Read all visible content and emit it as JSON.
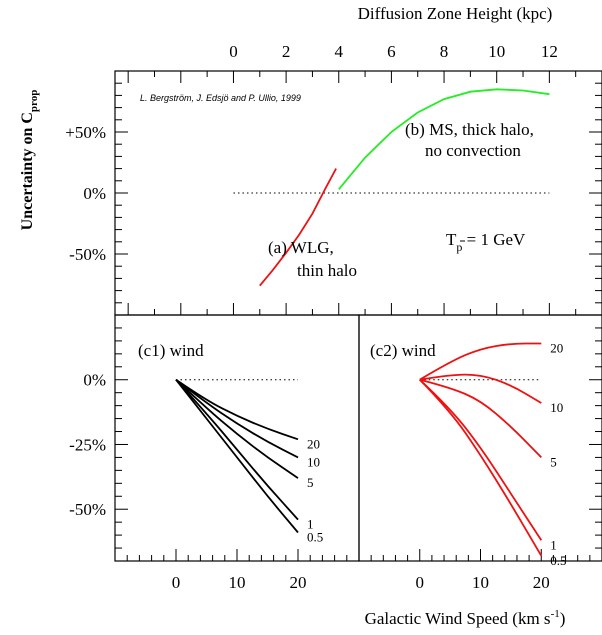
{
  "chart_data": [
    {
      "id": "top",
      "type": "line",
      "x2label": "Diffusion Zone Height (kpc)",
      "ylabel_main": "Uncertainty on C",
      "ylabel_sub": "prop",
      "xlim": [
        -4.5,
        14
      ],
      "ylim": [
        -100,
        100
      ],
      "xticks_major": [
        0,
        2,
        4,
        6,
        8,
        10,
        12
      ],
      "yticks": [
        {
          "value": 50,
          "label": "+50%"
        },
        {
          "value": 0,
          "label": "0%"
        },
        {
          "value": -50,
          "label": "-50%"
        }
      ],
      "credit": "L. Bergström, J. Edsjö and P. Ullio, 1999",
      "label_a": [
        "(a) WLG,",
        "thin halo"
      ],
      "label_b": [
        "(b) MS, thick halo,",
        "no convection"
      ],
      "tp_label": {
        "main": "T",
        "sub": "p",
        "rest": " = 1 GeV"
      },
      "colors": {
        "a": "#ee1111",
        "b": "#22ee22",
        "ref": "#000000"
      },
      "reference_line": {
        "x": [
          0,
          12
        ],
        "y": 0
      },
      "series": [
        {
          "key": "a",
          "x": [
            1.0,
            1.5,
            2.0,
            2.5,
            3.0,
            3.5,
            3.9
          ],
          "y": [
            -76,
            -63,
            -49,
            -34,
            -17,
            4,
            20
          ]
        },
        {
          "key": "b",
          "x": [
            4.0,
            5.0,
            6.0,
            7.0,
            8.0,
            9.0,
            10.0,
            11.0,
            12.0
          ],
          "y": [
            3,
            29,
            50,
            66,
            77,
            83,
            85,
            84,
            81
          ]
        }
      ]
    },
    {
      "id": "c1",
      "type": "line",
      "title": "(c1) wind",
      "xlim": [
        -10,
        30
      ],
      "ylim": [
        -70,
        25
      ],
      "xticks_major": [
        0,
        10,
        20
      ],
      "yticks": [
        {
          "value": 0,
          "label": "0%"
        },
        {
          "value": -25,
          "label": "-25%"
        },
        {
          "value": -50,
          "label": "-50%"
        }
      ],
      "color": "#000000",
      "reference_line": {
        "x": [
          0,
          20
        ],
        "y": 0
      },
      "series": [
        {
          "name": "20",
          "x": [
            0,
            5,
            10,
            15,
            20
          ],
          "y": [
            0,
            -8,
            -14,
            -19,
            -23
          ]
        },
        {
          "name": "10",
          "x": [
            0,
            5,
            10,
            15,
            20
          ],
          "y": [
            0,
            -9,
            -17,
            -24,
            -30
          ]
        },
        {
          "name": "5",
          "x": [
            0,
            5,
            10,
            15,
            20
          ],
          "y": [
            0,
            -11,
            -21,
            -30,
            -38
          ]
        },
        {
          "name": "1",
          "x": [
            0,
            5,
            10,
            15,
            20
          ],
          "y": [
            0,
            -13,
            -27,
            -41,
            -54
          ]
        },
        {
          "name": "0.5",
          "x": [
            0,
            5,
            10,
            15,
            20
          ],
          "y": [
            0,
            -15,
            -30,
            -45,
            -59
          ]
        }
      ]
    },
    {
      "id": "c2",
      "type": "line",
      "title": "(c2) wind",
      "xlim": [
        -10,
        30
      ],
      "ylim": [
        -70,
        25
      ],
      "xticks_major": [
        0,
        10,
        20
      ],
      "color": "#ee1111",
      "reference_line": {
        "x": [
          0,
          20
        ],
        "y": 0
      },
      "series": [
        {
          "name": "20",
          "x": [
            0,
            5,
            10,
            15,
            20
          ],
          "y": [
            0,
            7,
            12,
            14,
            14
          ]
        },
        {
          "name": "10",
          "x": [
            0,
            5,
            10,
            15,
            20
          ],
          "y": [
            0,
            2,
            2,
            -2,
            -9
          ]
        },
        {
          "name": "5",
          "x": [
            0,
            5,
            10,
            15,
            20
          ],
          "y": [
            0,
            -3,
            -8,
            -18,
            -30
          ]
        },
        {
          "name": "1",
          "x": [
            0,
            5,
            10,
            15,
            20
          ],
          "y": [
            0,
            -11,
            -26,
            -44,
            -62
          ]
        },
        {
          "name": "0.5",
          "x": [
            0,
            5,
            10,
            15,
            20
          ],
          "y": [
            0,
            -12,
            -29,
            -48,
            -68
          ]
        }
      ]
    }
  ],
  "xlabel_bottom": {
    "main": "Galactic Wind Speed (km s",
    "sup": "-1",
    "end": ")"
  }
}
